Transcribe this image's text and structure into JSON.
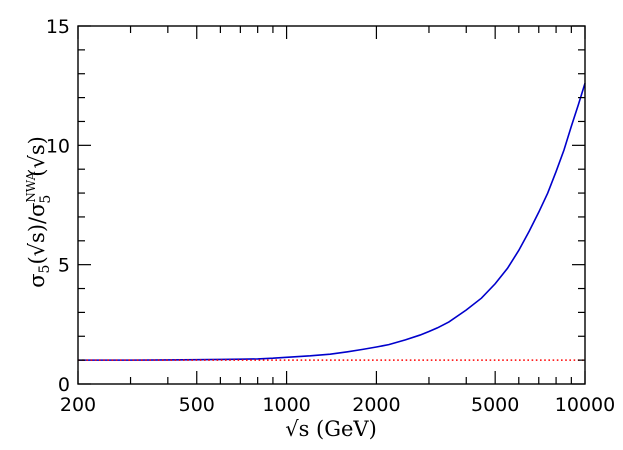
{
  "chart_data": {
    "type": "line",
    "title": "",
    "xlabel": "√s  (GeV)",
    "ylabel": "σ5(√s)/σ5^NWA(√s)",
    "ylabel_parts": {
      "main": "σ",
      "sub": "5",
      "mid": "(√s)/σ",
      "sup": "NWA",
      "sub2": "5",
      "tail": "(√s)"
    },
    "x_scale": "log",
    "xlim": [
      200,
      10000
    ],
    "ylim": [
      0,
      15
    ],
    "x_ticks": [
      200,
      500,
      1000,
      2000,
      5000,
      10000
    ],
    "x_tick_labels": [
      "200",
      "500",
      "1000",
      "2000",
      "5000",
      "10000"
    ],
    "y_ticks": [
      0,
      5,
      10,
      15
    ],
    "y_tick_labels": [
      "0",
      "5",
      "10",
      "15"
    ],
    "grid": false,
    "legend": "none",
    "series": [
      {
        "color": "#0000cc",
        "style": "solid",
        "x": [
          200,
          300,
          400,
          500,
          600,
          700,
          800,
          900,
          1000,
          1200,
          1400,
          1600,
          1800,
          2000,
          2200,
          2500,
          2800,
          3000,
          3200,
          3500,
          4000,
          4500,
          5000,
          5500,
          6000,
          6500,
          7000,
          7500,
          8000,
          8500,
          9000,
          9500,
          10000
        ],
        "y": [
          1.0,
          1.0,
          1.01,
          1.02,
          1.03,
          1.04,
          1.05,
          1.08,
          1.12,
          1.18,
          1.25,
          1.35,
          1.45,
          1.55,
          1.65,
          1.85,
          2.05,
          2.2,
          2.35,
          2.6,
          3.1,
          3.6,
          4.2,
          4.85,
          5.6,
          6.4,
          7.2,
          8.0,
          8.9,
          9.8,
          10.8,
          11.7,
          12.6
        ]
      },
      {
        "color": "#ff0000",
        "style": "dotted",
        "x": [
          200,
          10000
        ],
        "y": [
          1.0,
          1.0
        ]
      }
    ]
  }
}
